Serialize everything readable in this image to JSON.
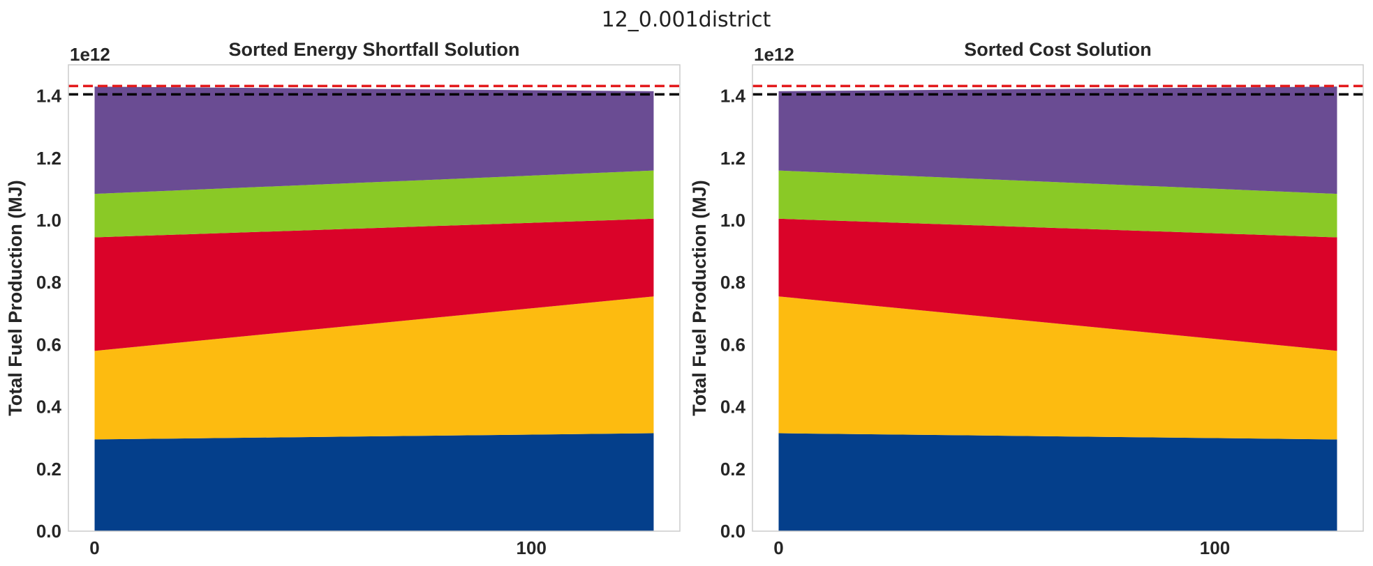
{
  "figure": {
    "suptitle": "12_0.001district"
  },
  "colors": {
    "series": [
      "#043f8b",
      "#fdbb10",
      "#da0329",
      "#8ac926",
      "#6a4c93"
    ],
    "red_line": "#e31a1c",
    "black_line": "#000000"
  },
  "chart_data": [
    {
      "type": "area",
      "stacked": true,
      "title": "Sorted Energy Shortfall Solution",
      "ylabel": "Total Fuel Production (MJ)",
      "y_offset_label": "1e12",
      "xlim": [
        -6,
        134
      ],
      "ylim": [
        0,
        1.5
      ],
      "xticks": [
        {
          "value": 0,
          "label": "0"
        },
        {
          "value": 100,
          "label": "100"
        }
      ],
      "yticks": [
        {
          "value": 0.0,
          "label": "0.0"
        },
        {
          "value": 0.2,
          "label": "0.2"
        },
        {
          "value": 0.4,
          "label": "0.4"
        },
        {
          "value": 0.6,
          "label": "0.6"
        },
        {
          "value": 0.8,
          "label": "0.8"
        },
        {
          "value": 1.0,
          "label": "1.0"
        },
        {
          "value": 1.2,
          "label": "1.2"
        },
        {
          "value": 1.4,
          "label": "1.4"
        }
      ],
      "grid": false,
      "x": [
        0,
        128
      ],
      "series": [
        {
          "values": [
            0.295,
            0.315
          ]
        },
        {
          "values": [
            0.285,
            0.44
          ]
        },
        {
          "values": [
            0.365,
            0.25
          ]
        },
        {
          "values": [
            0.14,
            0.155
          ]
        },
        {
          "values": [
            0.345,
            0.255
          ]
        }
      ],
      "hlines": [
        {
          "y": 1.432,
          "style": "dashed",
          "color": "#e31a1c"
        },
        {
          "y": 1.405,
          "style": "dashed",
          "color": "#000000"
        }
      ]
    },
    {
      "type": "area",
      "stacked": true,
      "title": "Sorted Cost Solution",
      "ylabel": "Total Fuel Production (MJ)",
      "y_offset_label": "1e12",
      "xlim": [
        -6,
        134
      ],
      "ylim": [
        0,
        1.5
      ],
      "xticks": [
        {
          "value": 0,
          "label": "0"
        },
        {
          "value": 100,
          "label": "100"
        }
      ],
      "yticks": [
        {
          "value": 0.0,
          "label": "0.0"
        },
        {
          "value": 0.2,
          "label": "0.2"
        },
        {
          "value": 0.4,
          "label": "0.4"
        },
        {
          "value": 0.6,
          "label": "0.6"
        },
        {
          "value": 0.8,
          "label": "0.8"
        },
        {
          "value": 1.0,
          "label": "1.0"
        },
        {
          "value": 1.2,
          "label": "1.2"
        },
        {
          "value": 1.4,
          "label": "1.4"
        }
      ],
      "grid": false,
      "x": [
        0,
        128
      ],
      "series": [
        {
          "values": [
            0.315,
            0.295
          ]
        },
        {
          "values": [
            0.44,
            0.285
          ]
        },
        {
          "values": [
            0.25,
            0.365
          ]
        },
        {
          "values": [
            0.155,
            0.14
          ]
        },
        {
          "values": [
            0.255,
            0.345
          ]
        }
      ],
      "hlines": [
        {
          "y": 1.432,
          "style": "dashed",
          "color": "#e31a1c"
        },
        {
          "y": 1.405,
          "style": "dashed",
          "color": "#000000"
        }
      ]
    }
  ]
}
